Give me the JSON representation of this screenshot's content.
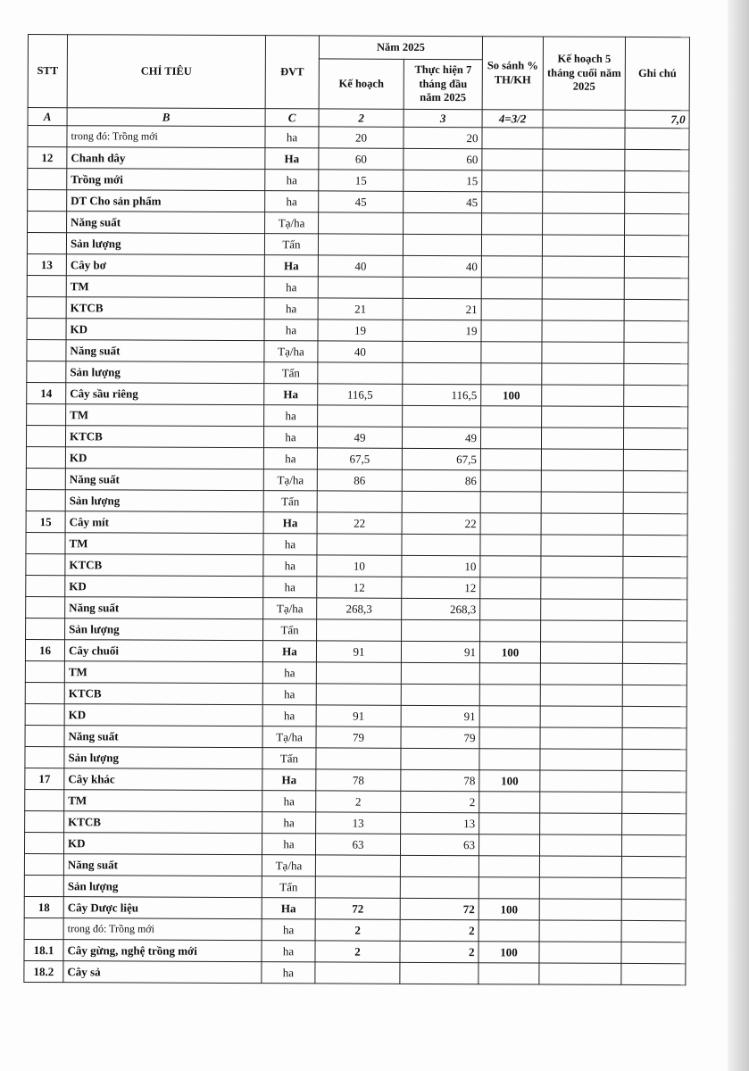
{
  "header": {
    "stt": "STT",
    "chi_tieu": "CHỈ TIÊU",
    "dvt": "ĐVT",
    "nam": "Năm 2025",
    "ke_hoach": "Kế hoạch",
    "thuc_hien": "Thực hiện 7 tháng đầu năm 2025",
    "so_sanh": "So sánh % TH/KH",
    "kh5": "Kế hoạch 5 tháng cuối năm 2025",
    "ghi_chu": "Ghi chú"
  },
  "index_row": [
    "A",
    "B",
    "C",
    "2",
    "3",
    "4=3/2",
    "",
    "7,0"
  ],
  "rows": [
    {
      "stt": "",
      "name": "trong đó: Trồng mới",
      "bold": false,
      "dvt": "ha",
      "kh": "20",
      "th": "20",
      "ss": ""
    },
    {
      "stt": "12",
      "name": "Chanh dây",
      "bold": true,
      "dvt": "Ha",
      "kh": "60",
      "th": "60",
      "ss": ""
    },
    {
      "stt": "",
      "name": "Trồng mới",
      "bold": true,
      "dvt": "ha",
      "kh": "15",
      "th": "15",
      "ss": ""
    },
    {
      "stt": "",
      "name": "DT Cho sản phẩm",
      "bold": true,
      "dvt": "ha",
      "kh": "45",
      "th": "45",
      "ss": ""
    },
    {
      "stt": "",
      "name": "Năng suất",
      "bold": true,
      "dvt": "Tạ/ha",
      "kh": "",
      "th": "",
      "ss": ""
    },
    {
      "stt": "",
      "name": "Sản lượng",
      "bold": true,
      "dvt": "Tấn",
      "kh": "",
      "th": "",
      "ss": ""
    },
    {
      "stt": "13",
      "name": "Cây bơ",
      "bold": true,
      "dvt": "Ha",
      "kh": "40",
      "th": "40",
      "ss": ""
    },
    {
      "stt": "",
      "name": "TM",
      "bold": true,
      "dvt": "ha",
      "kh": "",
      "th": "",
      "ss": ""
    },
    {
      "stt": "",
      "name": "KTCB",
      "bold": true,
      "dvt": "ha",
      "kh": "21",
      "th": "21",
      "ss": ""
    },
    {
      "stt": "",
      "name": "KD",
      "bold": true,
      "dvt": "ha",
      "kh": "19",
      "th": "19",
      "ss": ""
    },
    {
      "stt": "",
      "name": "Năng suất",
      "bold": true,
      "dvt": "Tạ/ha",
      "kh": "40",
      "th": "",
      "ss": ""
    },
    {
      "stt": "",
      "name": "Sản lượng",
      "bold": true,
      "dvt": "Tấn",
      "kh": "",
      "th": "",
      "ss": ""
    },
    {
      "stt": "14",
      "name": "Cây sầu riêng",
      "bold": true,
      "dvt": "Ha",
      "kh": "116,5",
      "th": "116,5",
      "ss": "100"
    },
    {
      "stt": "",
      "name": "TM",
      "bold": true,
      "dvt": "ha",
      "kh": "",
      "th": "",
      "ss": ""
    },
    {
      "stt": "",
      "name": "KTCB",
      "bold": true,
      "dvt": "ha",
      "kh": "49",
      "th": "49",
      "ss": ""
    },
    {
      "stt": "",
      "name": "KD",
      "bold": true,
      "dvt": "ha",
      "kh": "67,5",
      "th": "67,5",
      "ss": ""
    },
    {
      "stt": "",
      "name": "Năng suất",
      "bold": true,
      "dvt": "Tạ/ha",
      "kh": "86",
      "th": "86",
      "ss": ""
    },
    {
      "stt": "",
      "name": "Sản lượng",
      "bold": true,
      "dvt": "Tấn",
      "kh": "",
      "th": "",
      "ss": ""
    },
    {
      "stt": "15",
      "name": "Cây mít",
      "bold": true,
      "dvt": "Ha",
      "kh": "22",
      "th": "22",
      "ss": ""
    },
    {
      "stt": "",
      "name": "TM",
      "bold": true,
      "dvt": "ha",
      "kh": "",
      "th": "",
      "ss": ""
    },
    {
      "stt": "",
      "name": "KTCB",
      "bold": true,
      "dvt": "ha",
      "kh": "10",
      "th": "10",
      "ss": ""
    },
    {
      "stt": "",
      "name": "KD",
      "bold": true,
      "dvt": "ha",
      "kh": "12",
      "th": "12",
      "ss": ""
    },
    {
      "stt": "",
      "name": "Năng suất",
      "bold": true,
      "dvt": "Tạ/ha",
      "kh": "268,3",
      "th": "268,3",
      "ss": ""
    },
    {
      "stt": "",
      "name": "Sản lượng",
      "bold": true,
      "dvt": "Tấn",
      "kh": "",
      "th": "",
      "ss": ""
    },
    {
      "stt": "16",
      "name": "Cây chuối",
      "bold": true,
      "dvt": "Ha",
      "kh": "91",
      "th": "91",
      "ss": "100"
    },
    {
      "stt": "",
      "name": "TM",
      "bold": true,
      "dvt": "ha",
      "kh": "",
      "th": "",
      "ss": ""
    },
    {
      "stt": "",
      "name": "KTCB",
      "bold": true,
      "dvt": "ha",
      "kh": "",
      "th": "",
      "ss": ""
    },
    {
      "stt": "",
      "name": "KD",
      "bold": true,
      "dvt": "ha",
      "kh": "91",
      "th": "91",
      "ss": ""
    },
    {
      "stt": "",
      "name": "Năng suất",
      "bold": true,
      "dvt": "Tạ/ha",
      "kh": "79",
      "th": "79",
      "ss": ""
    },
    {
      "stt": "",
      "name": "Sản lượng",
      "bold": true,
      "dvt": "Tấn",
      "kh": "",
      "th": "",
      "ss": ""
    },
    {
      "stt": "17",
      "name": "Cây khác",
      "bold": true,
      "dvt": "Ha",
      "kh": "78",
      "th": "78",
      "ss": "100"
    },
    {
      "stt": "",
      "name": "TM",
      "bold": true,
      "dvt": "ha",
      "kh": "2",
      "th": "2",
      "ss": ""
    },
    {
      "stt": "",
      "name": "KTCB",
      "bold": true,
      "dvt": "ha",
      "kh": "13",
      "th": "13",
      "ss": ""
    },
    {
      "stt": "",
      "name": "KD",
      "bold": true,
      "dvt": "ha",
      "kh": "63",
      "th": "63",
      "ss": ""
    },
    {
      "stt": "",
      "name": "Năng suất",
      "bold": true,
      "dvt": "Tạ/ha",
      "kh": "",
      "th": "",
      "ss": ""
    },
    {
      "stt": "",
      "name": "Sản lượng",
      "bold": true,
      "dvt": "Tấn",
      "kh": "",
      "th": "",
      "ss": ""
    },
    {
      "stt": "18",
      "name": "Cây Dược liệu",
      "bold": true,
      "dvt": "Ha",
      "kh": "72",
      "th": "72",
      "ss": "100"
    },
    {
      "stt": "",
      "name": "trong đó: Trồng mới",
      "bold": false,
      "dvt": "ha",
      "kh": "2",
      "th": "2",
      "ss": ""
    },
    {
      "stt": "18.1",
      "name": "Cây gừng, nghệ trồng mới",
      "bold": true,
      "dvt": "ha",
      "kh": "2",
      "th": "2",
      "ss": "100"
    },
    {
      "stt": "18.2",
      "name": "Cây sả",
      "bold": true,
      "dvt": "ha",
      "kh": "",
      "th": "",
      "ss": ""
    }
  ]
}
